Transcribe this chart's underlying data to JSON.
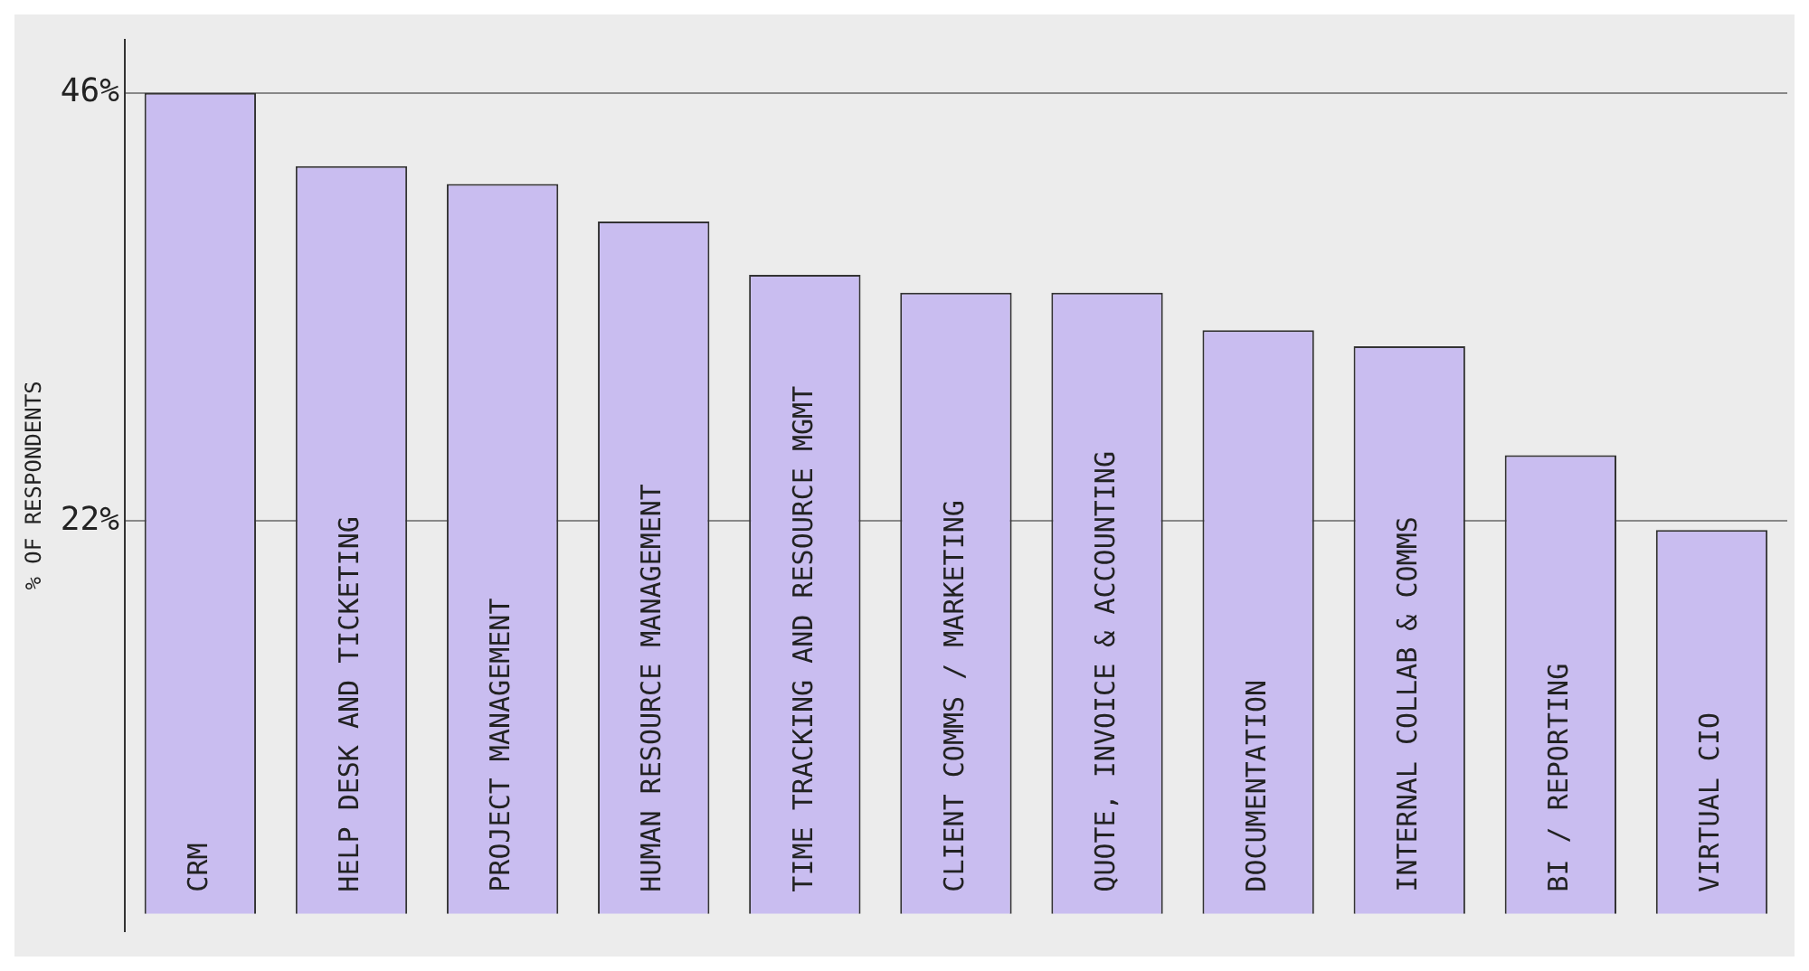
{
  "chart_data": {
    "type": "bar",
    "ylabel": "% OF RESPONDENTS",
    "categories": [
      "CRM",
      "HELP DESK AND TICKETING",
      "PROJECT MANAGEMENT",
      "HUMAN RESOURCE MANAGEMENT",
      "TIME TRACKING AND RESOURCE MGMT",
      "CLIENT COMMS / MARKETING",
      "QUOTE, INVOICE & ACCOUNTING",
      "DOCUMENTATION",
      "INTERNAL COLLAB & COMMS",
      "BI / REPORTING",
      "VIRTUAL CIO"
    ],
    "values": [
      46,
      41.9,
      40.9,
      38.8,
      35.8,
      34.8,
      34.8,
      32.7,
      31.8,
      25.7,
      21.5
    ],
    "color": "#c9bdf0",
    "ylim": [
      -1,
      49
    ],
    "yticks": [
      {
        "value": 22,
        "label": "22%"
      },
      {
        "value": 46,
        "label": "46%"
      }
    ],
    "grid": "y"
  }
}
